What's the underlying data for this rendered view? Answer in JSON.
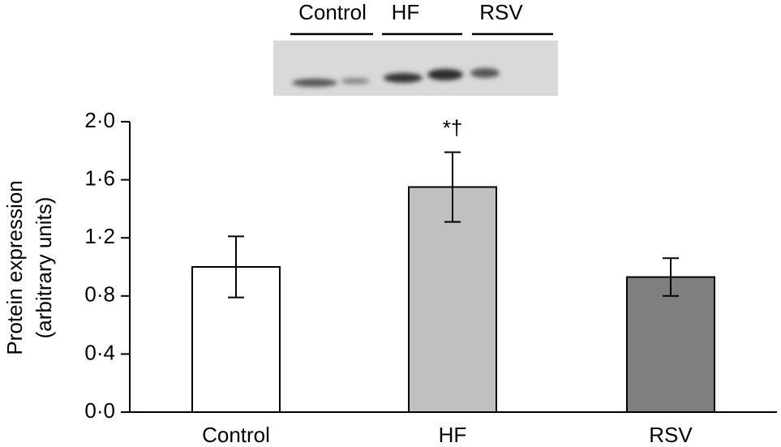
{
  "chart_data": {
    "type": "bar",
    "blot_labels": [
      "Control",
      "HF",
      "RSV"
    ],
    "ylabel": [
      "Protein expression",
      "(arbitrary units)"
    ],
    "categories": [
      "Control",
      "HF",
      "RSV"
    ],
    "values": [
      1.0,
      1.55,
      0.93
    ],
    "errors": [
      0.21,
      0.24,
      0.13
    ],
    "colors": [
      "#ffffff",
      "#c0c0c0",
      "#7f7f7f"
    ],
    "annotations": [
      null,
      "*†",
      null
    ],
    "ylim": [
      0,
      2
    ],
    "yticks": [
      {
        "value": 0,
        "label": "0·0"
      },
      {
        "value": 0.4,
        "label": "0·4"
      },
      {
        "value": 0.8,
        "label": "0·8"
      },
      {
        "value": 1.2,
        "label": "1·2"
      },
      {
        "value": 1.6,
        "label": "1·6"
      },
      {
        "value": 2,
        "label": "2·0"
      }
    ]
  }
}
